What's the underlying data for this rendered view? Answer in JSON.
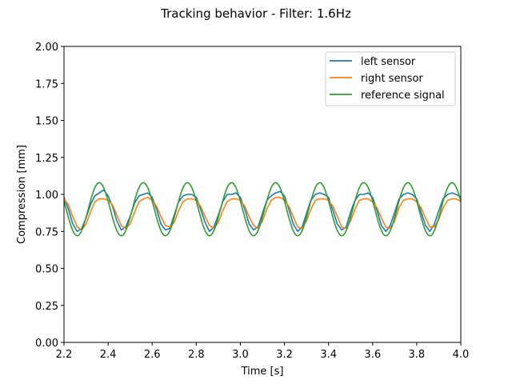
{
  "chart_data": {
    "type": "line",
    "title": "Tracking behavior - Filter: 1.6Hz",
    "xlabel": "Time [s]",
    "ylabel": "Compression [mm]",
    "xlim": [
      2.2,
      4.0
    ],
    "ylim": [
      0.0,
      2.0
    ],
    "x_ticks": [
      2.2,
      2.4,
      2.6,
      2.8,
      3.0,
      3.2,
      3.4,
      3.6,
      3.8,
      4.0
    ],
    "x_tick_labels": [
      "2.2",
      "2.4",
      "2.6",
      "2.8",
      "3.0",
      "3.2",
      "3.4",
      "3.6",
      "3.8",
      "4.0"
    ],
    "y_ticks": [
      0.0,
      0.25,
      0.5,
      0.75,
      1.0,
      1.25,
      1.5,
      1.75,
      2.0
    ],
    "y_tick_labels": [
      "0.00",
      "0.25",
      "0.50",
      "0.75",
      "1.00",
      "1.25",
      "1.50",
      "1.75",
      "2.00"
    ],
    "grid": false,
    "legend_position": "top-right",
    "series": [
      {
        "name": "left sensor",
        "color": "#1f77b4",
        "x": [
          2.2,
          2.22,
          2.24,
          2.26,
          2.28,
          2.3,
          2.32,
          2.34,
          2.36,
          2.38,
          2.4,
          2.42,
          2.44,
          2.46,
          2.48,
          2.5,
          2.52,
          2.54,
          2.56,
          2.58,
          2.6,
          2.62,
          2.64,
          2.66,
          2.68,
          2.7,
          2.72,
          2.74,
          2.76,
          2.78,
          2.8,
          2.82,
          2.84,
          2.86,
          2.88,
          2.9,
          2.92,
          2.94,
          2.96,
          2.98,
          3.0,
          3.02,
          3.04,
          3.06,
          3.08,
          3.1,
          3.12,
          3.14,
          3.16,
          3.18,
          3.2,
          3.22,
          3.24,
          3.26,
          3.28,
          3.3,
          3.32,
          3.34,
          3.36,
          3.38,
          3.4,
          3.42,
          3.44,
          3.46,
          3.48,
          3.5,
          3.52,
          3.54,
          3.56,
          3.58,
          3.6,
          3.62,
          3.64,
          3.66,
          3.68,
          3.7,
          3.72,
          3.74,
          3.76,
          3.78,
          3.8,
          3.82,
          3.84,
          3.86,
          3.88,
          3.9,
          3.92,
          3.94,
          3.96,
          3.98,
          4.0
        ],
        "y": [
          0.98,
          0.9,
          0.8,
          0.75,
          0.77,
          0.84,
          0.93,
          0.99,
          1.01,
          1.03,
          0.99,
          0.92,
          0.82,
          0.76,
          0.78,
          0.85,
          0.94,
          0.99,
          1.0,
          1.01,
          0.98,
          0.9,
          0.8,
          0.76,
          0.77,
          0.86,
          0.95,
          0.99,
          1.0,
          1.0,
          0.98,
          0.9,
          0.81,
          0.75,
          0.78,
          0.86,
          0.95,
          1.0,
          1.0,
          1.01,
          0.98,
          0.9,
          0.8,
          0.76,
          0.78,
          0.87,
          0.96,
          0.99,
          1.01,
          1.02,
          0.99,
          0.9,
          0.8,
          0.75,
          0.78,
          0.87,
          0.96,
          1.0,
          1.01,
          1.0,
          0.98,
          0.89,
          0.8,
          0.76,
          0.78,
          0.88,
          0.96,
          1.0,
          1.0,
          1.01,
          0.98,
          0.89,
          0.79,
          0.75,
          0.79,
          0.88,
          0.97,
          1.0,
          1.01,
          1.0,
          0.97,
          0.88,
          0.79,
          0.75,
          0.8,
          0.89,
          0.97,
          1.0,
          1.01,
          1.0,
          0.98
        ]
      },
      {
        "name": "right sensor",
        "color": "#ff7f0e",
        "x": [
          2.2,
          2.22,
          2.24,
          2.26,
          2.28,
          2.3,
          2.32,
          2.34,
          2.36,
          2.38,
          2.4,
          2.42,
          2.44,
          2.46,
          2.48,
          2.5,
          2.52,
          2.54,
          2.56,
          2.58,
          2.6,
          2.62,
          2.64,
          2.66,
          2.68,
          2.7,
          2.72,
          2.74,
          2.76,
          2.78,
          2.8,
          2.82,
          2.84,
          2.86,
          2.88,
          2.9,
          2.92,
          2.94,
          2.96,
          2.98,
          3.0,
          3.02,
          3.04,
          3.06,
          3.08,
          3.1,
          3.12,
          3.14,
          3.16,
          3.18,
          3.2,
          3.22,
          3.24,
          3.26,
          3.28,
          3.3,
          3.32,
          3.34,
          3.36,
          3.38,
          3.4,
          3.42,
          3.44,
          3.46,
          3.48,
          3.5,
          3.52,
          3.54,
          3.56,
          3.58,
          3.6,
          3.62,
          3.64,
          3.66,
          3.68,
          3.7,
          3.72,
          3.74,
          3.76,
          3.78,
          3.8,
          3.82,
          3.84,
          3.86,
          3.88,
          3.9,
          3.92,
          3.94,
          3.96,
          3.98,
          4.0
        ],
        "y": [
          0.97,
          0.93,
          0.85,
          0.78,
          0.76,
          0.8,
          0.88,
          0.95,
          0.97,
          0.97,
          0.96,
          0.93,
          0.86,
          0.79,
          0.77,
          0.8,
          0.88,
          0.95,
          0.97,
          0.98,
          0.96,
          0.92,
          0.85,
          0.79,
          0.78,
          0.81,
          0.89,
          0.95,
          0.97,
          0.97,
          0.96,
          0.92,
          0.85,
          0.79,
          0.77,
          0.81,
          0.89,
          0.95,
          0.97,
          0.97,
          0.96,
          0.92,
          0.85,
          0.79,
          0.77,
          0.82,
          0.9,
          0.96,
          0.98,
          0.98,
          0.96,
          0.92,
          0.85,
          0.78,
          0.77,
          0.82,
          0.9,
          0.96,
          0.97,
          0.97,
          0.96,
          0.92,
          0.85,
          0.78,
          0.77,
          0.82,
          0.9,
          0.96,
          0.97,
          0.97,
          0.95,
          0.91,
          0.84,
          0.78,
          0.77,
          0.82,
          0.91,
          0.96,
          0.97,
          0.97,
          0.95,
          0.91,
          0.84,
          0.78,
          0.78,
          0.83,
          0.91,
          0.96,
          0.97,
          0.97,
          0.95
        ]
      },
      {
        "name": "reference signal",
        "color": "#2ca02c",
        "frequency_hz": 5.0,
        "amplitude": 0.18,
        "offset": 0.9,
        "phase_peak_x": 2.36
      }
    ]
  }
}
